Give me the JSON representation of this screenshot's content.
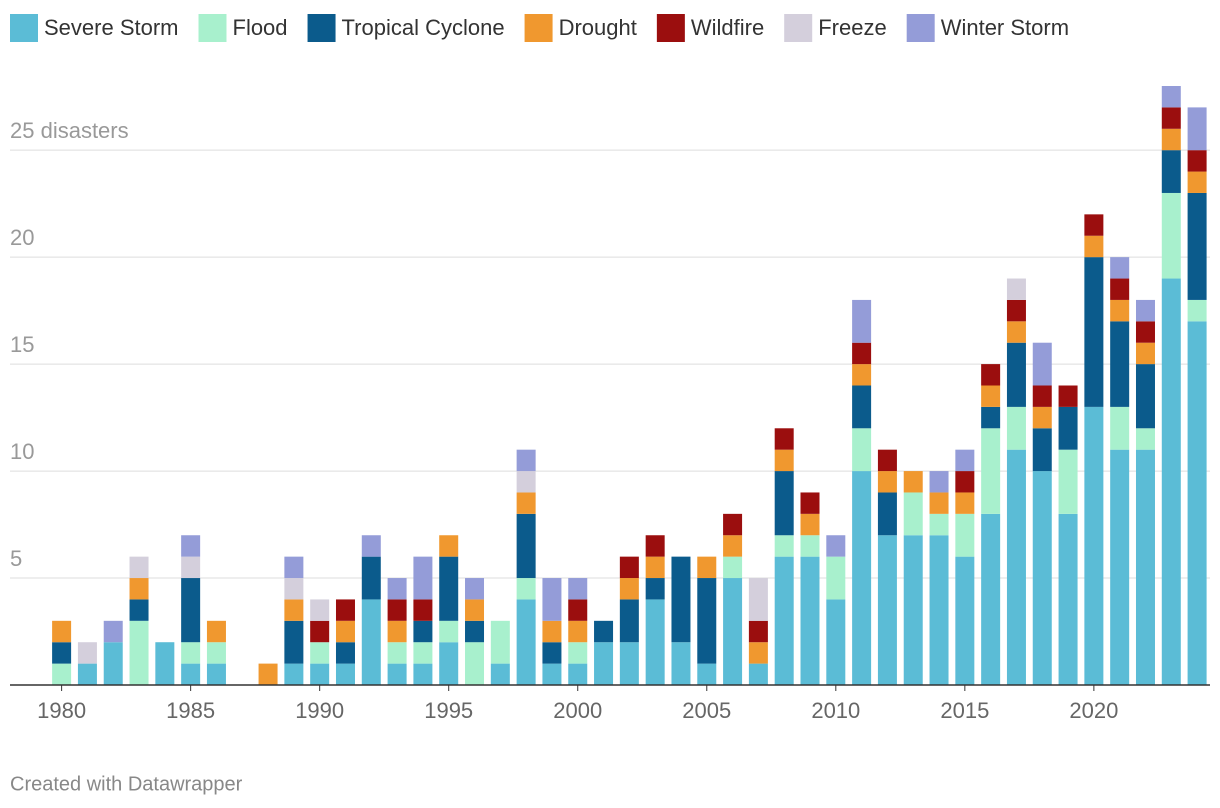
{
  "chart_data": {
    "type": "stacked-bar",
    "x": [
      1980,
      1981,
      1982,
      1983,
      1984,
      1985,
      1986,
      1987,
      1988,
      1989,
      1990,
      1991,
      1992,
      1993,
      1994,
      1995,
      1996,
      1997,
      1998,
      1999,
      2000,
      2001,
      2002,
      2003,
      2004,
      2005,
      2006,
      2007,
      2008,
      2009,
      2010,
      2011,
      2012,
      2013,
      2014,
      2015,
      2016,
      2017,
      2018,
      2019,
      2020,
      2021,
      2022,
      2023,
      2024
    ],
    "series": [
      {
        "name": "Severe Storm",
        "color": "#5bbcd6",
        "values": [
          0,
          1,
          2,
          0,
          2,
          1,
          1,
          0,
          0,
          1,
          1,
          1,
          4,
          1,
          1,
          2,
          0,
          1,
          4,
          1,
          1,
          2,
          2,
          4,
          2,
          1,
          5,
          1,
          6,
          6,
          4,
          10,
          7,
          7,
          7,
          6,
          8,
          11,
          10,
          8,
          13,
          11,
          11,
          19,
          17
        ]
      },
      {
        "name": "Flood",
        "color": "#a8f0cd",
        "values": [
          1,
          0,
          0,
          3,
          0,
          1,
          1,
          0,
          0,
          0,
          1,
          0,
          0,
          1,
          1,
          1,
          2,
          2,
          1,
          0,
          1,
          0,
          0,
          0,
          0,
          0,
          1,
          0,
          1,
          1,
          2,
          2,
          0,
          2,
          1,
          2,
          4,
          2,
          0,
          3,
          0,
          2,
          1,
          4,
          1
        ]
      },
      {
        "name": "Tropical Cyclone",
        "color": "#0b5b8c",
        "values": [
          1,
          0,
          0,
          1,
          0,
          3,
          0,
          0,
          0,
          2,
          0,
          1,
          2,
          0,
          1,
          3,
          1,
          0,
          3,
          1,
          0,
          1,
          2,
          1,
          4,
          4,
          0,
          0,
          3,
          0,
          0,
          2,
          2,
          0,
          0,
          0,
          1,
          3,
          2,
          2,
          7,
          4,
          3,
          2,
          5
        ]
      },
      {
        "name": "Drought",
        "color": "#f0982f",
        "values": [
          1,
          0,
          0,
          1,
          0,
          0,
          1,
          0,
          1,
          1,
          0,
          1,
          0,
          1,
          0,
          1,
          1,
          0,
          1,
          1,
          1,
          0,
          1,
          1,
          0,
          1,
          1,
          1,
          1,
          1,
          0,
          1,
          1,
          1,
          1,
          1,
          1,
          1,
          1,
          0,
          1,
          1,
          1,
          1,
          1
        ]
      },
      {
        "name": "Wildfire",
        "color": "#9b0e0e",
        "values": [
          0,
          0,
          0,
          0,
          0,
          0,
          0,
          0,
          0,
          0,
          1,
          1,
          0,
          1,
          1,
          0,
          0,
          0,
          0,
          0,
          1,
          0,
          1,
          1,
          0,
          0,
          1,
          1,
          1,
          1,
          0,
          1,
          1,
          0,
          0,
          1,
          1,
          1,
          1,
          1,
          1,
          1,
          1,
          1,
          1
        ]
      },
      {
        "name": "Freeze",
        "color": "#d4cfdc",
        "values": [
          0,
          1,
          0,
          1,
          0,
          1,
          0,
          0,
          0,
          1,
          1,
          0,
          0,
          0,
          0,
          0,
          0,
          0,
          1,
          0,
          0,
          0,
          0,
          0,
          0,
          0,
          0,
          2,
          0,
          0,
          0,
          0,
          0,
          0,
          0,
          0,
          0,
          1,
          0,
          0,
          0,
          0,
          0,
          0,
          0
        ]
      },
      {
        "name": "Winter Storm",
        "color": "#949cd8",
        "values": [
          0,
          0,
          1,
          0,
          0,
          1,
          0,
          0,
          0,
          1,
          0,
          0,
          1,
          1,
          2,
          0,
          1,
          0,
          1,
          2,
          1,
          0,
          0,
          0,
          0,
          0,
          0,
          0,
          0,
          0,
          1,
          2,
          0,
          0,
          1,
          1,
          0,
          0,
          2,
          0,
          0,
          1,
          1,
          1,
          2
        ]
      }
    ],
    "xlim": [
      1978,
      2024.5
    ],
    "xticks": [
      1980,
      1985,
      1990,
      1995,
      2000,
      2005,
      2010,
      2015,
      2020
    ],
    "ylim": [
      0,
      28
    ],
    "yticks": [
      5,
      10,
      15,
      20,
      {
        "value": 25,
        "label": "25 disasters"
      }
    ],
    "grid": true,
    "legend": "top",
    "footer": "Created with Datawrapper"
  }
}
